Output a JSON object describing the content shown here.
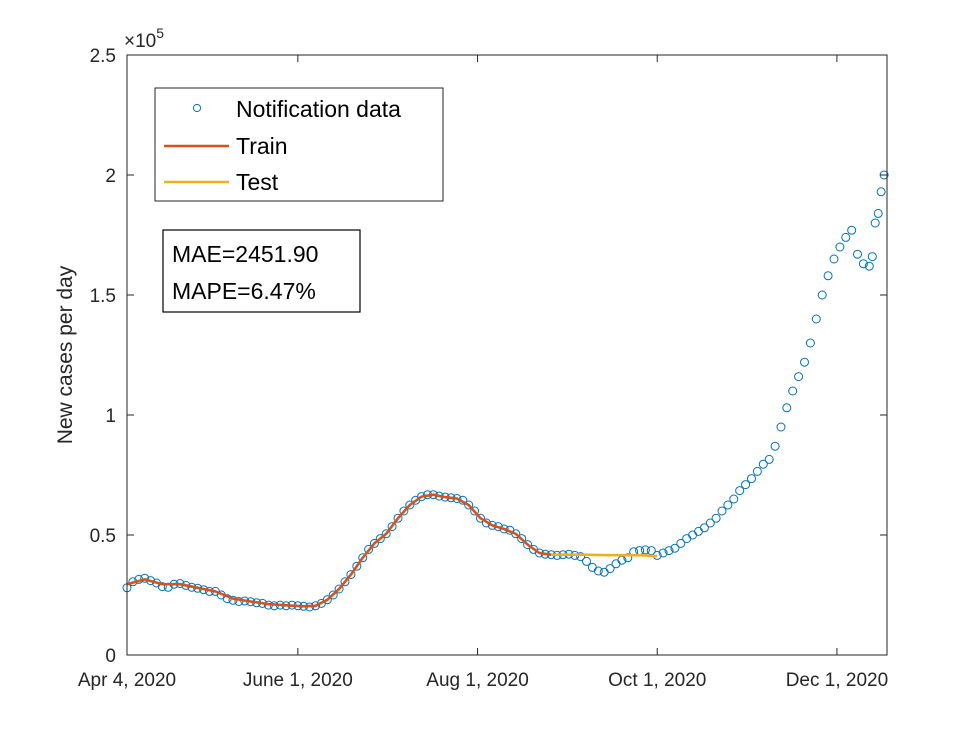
{
  "chart_data": {
    "type": "line",
    "title": "",
    "xlabel": "",
    "ylabel": "New cases per day",
    "exponent_label": "×10",
    "exponent_power": "5",
    "x_range": [
      "2020-04-04",
      "2020-12-18"
    ],
    "ylim": [
      0,
      250000
    ],
    "x_ticks": [
      {
        "date": "2020-04-04",
        "label": "Apr 4, 2020"
      },
      {
        "date": "2020-06-01",
        "label": "June 1, 2020"
      },
      {
        "date": "2020-08-01",
        "label": "Aug 1, 2020"
      },
      {
        "date": "2020-10-01",
        "label": "Oct 1, 2020"
      },
      {
        "date": "2020-12-01",
        "label": "Dec 1, 2020"
      }
    ],
    "y_ticks": [
      {
        "value": 0,
        "label": "0"
      },
      {
        "value": 50000,
        "label": "0.5"
      },
      {
        "value": 100000,
        "label": "1"
      },
      {
        "value": 150000,
        "label": "1.5"
      },
      {
        "value": 200000,
        "label": "2"
      },
      {
        "value": 250000,
        "label": "2.5"
      }
    ],
    "grid": false,
    "legend_position": "top-left",
    "annotations": [
      "MAE=2451.90",
      "MAPE=6.47%"
    ],
    "series": [
      {
        "name": "Notification data",
        "style": "circle-markers",
        "color": "#0072BD",
        "points": [
          [
            "2020-04-04",
            28000
          ],
          [
            "2020-04-06",
            30500
          ],
          [
            "2020-04-08",
            31500
          ],
          [
            "2020-04-10",
            32000
          ],
          [
            "2020-04-12",
            31000
          ],
          [
            "2020-04-14",
            30000
          ],
          [
            "2020-04-16",
            28500
          ],
          [
            "2020-04-18",
            28200
          ],
          [
            "2020-04-20",
            29500
          ],
          [
            "2020-04-22",
            29800
          ],
          [
            "2020-04-24",
            29000
          ],
          [
            "2020-04-26",
            28200
          ],
          [
            "2020-04-28",
            27800
          ],
          [
            "2020-04-30",
            27200
          ],
          [
            "2020-05-02",
            26500
          ],
          [
            "2020-05-04",
            26500
          ],
          [
            "2020-05-06",
            25000
          ],
          [
            "2020-05-08",
            23500
          ],
          [
            "2020-05-10",
            22800
          ],
          [
            "2020-05-12",
            22300
          ],
          [
            "2020-05-14",
            22500
          ],
          [
            "2020-05-16",
            22200
          ],
          [
            "2020-05-18",
            21800
          ],
          [
            "2020-05-20",
            21500
          ],
          [
            "2020-05-22",
            20800
          ],
          [
            "2020-05-24",
            20500
          ],
          [
            "2020-05-26",
            20800
          ],
          [
            "2020-05-28",
            20500
          ],
          [
            "2020-05-30",
            20800
          ],
          [
            "2020-06-01",
            20500
          ],
          [
            "2020-06-03",
            20300
          ],
          [
            "2020-06-05",
            20000
          ],
          [
            "2020-06-07",
            20500
          ],
          [
            "2020-06-09",
            21500
          ],
          [
            "2020-06-11",
            23000
          ],
          [
            "2020-06-13",
            25000
          ],
          [
            "2020-06-15",
            27500
          ],
          [
            "2020-06-17",
            30500
          ],
          [
            "2020-06-19",
            33500
          ],
          [
            "2020-06-21",
            37000
          ],
          [
            "2020-06-23",
            40500
          ],
          [
            "2020-06-25",
            44000
          ],
          [
            "2020-06-27",
            46500
          ],
          [
            "2020-06-29",
            48500
          ],
          [
            "2020-07-01",
            50500
          ],
          [
            "2020-07-03",
            53500
          ],
          [
            "2020-07-05",
            57000
          ],
          [
            "2020-07-07",
            60000
          ],
          [
            "2020-07-09",
            62500
          ],
          [
            "2020-07-11",
            64500
          ],
          [
            "2020-07-13",
            66000
          ],
          [
            "2020-07-15",
            66800
          ],
          [
            "2020-07-17",
            66800
          ],
          [
            "2020-07-19",
            66200
          ],
          [
            "2020-07-21",
            65800
          ],
          [
            "2020-07-23",
            65500
          ],
          [
            "2020-07-25",
            65200
          ],
          [
            "2020-07-27",
            64500
          ],
          [
            "2020-07-29",
            62500
          ],
          [
            "2020-07-31",
            60000
          ],
          [
            "2020-08-02",
            57000
          ],
          [
            "2020-08-04",
            55000
          ],
          [
            "2020-08-06",
            54000
          ],
          [
            "2020-08-08",
            53500
          ],
          [
            "2020-08-10",
            52500
          ],
          [
            "2020-08-12",
            52000
          ],
          [
            "2020-08-14",
            50500
          ],
          [
            "2020-08-16",
            48500
          ],
          [
            "2020-08-18",
            46000
          ],
          [
            "2020-08-20",
            44000
          ],
          [
            "2020-08-22",
            42500
          ],
          [
            "2020-08-24",
            42000
          ],
          [
            "2020-08-26",
            41800
          ],
          [
            "2020-08-28",
            41500
          ],
          [
            "2020-08-30",
            41800
          ],
          [
            "2020-09-01",
            42000
          ],
          [
            "2020-09-03",
            41500
          ],
          [
            "2020-09-05",
            41000
          ],
          [
            "2020-09-07",
            39000
          ],
          [
            "2020-09-09",
            36500
          ],
          [
            "2020-09-11",
            35000
          ],
          [
            "2020-09-13",
            34500
          ],
          [
            "2020-09-15",
            36000
          ],
          [
            "2020-09-17",
            38000
          ],
          [
            "2020-09-19",
            39500
          ],
          [
            "2020-09-21",
            40500
          ],
          [
            "2020-09-23",
            43000
          ],
          [
            "2020-09-25",
            43500
          ],
          [
            "2020-09-27",
            43800
          ],
          [
            "2020-09-29",
            43500
          ],
          [
            "2020-10-01",
            41500
          ],
          [
            "2020-10-03",
            42500
          ],
          [
            "2020-10-05",
            43500
          ],
          [
            "2020-10-07",
            44500
          ],
          [
            "2020-10-09",
            46500
          ],
          [
            "2020-10-11",
            48500
          ],
          [
            "2020-10-13",
            50000
          ],
          [
            "2020-10-15",
            51500
          ],
          [
            "2020-10-17",
            53000
          ],
          [
            "2020-10-19",
            55000
          ],
          [
            "2020-10-21",
            57000
          ],
          [
            "2020-10-23",
            60000
          ],
          [
            "2020-10-25",
            62500
          ],
          [
            "2020-10-27",
            65000
          ],
          [
            "2020-10-29",
            68500
          ],
          [
            "2020-10-31",
            71000
          ],
          [
            "2020-11-02",
            73500
          ],
          [
            "2020-11-04",
            76500
          ],
          [
            "2020-11-06",
            79500
          ],
          [
            "2020-11-08",
            81500
          ],
          [
            "2020-11-10",
            87000
          ],
          [
            "2020-11-12",
            95000
          ],
          [
            "2020-11-14",
            103000
          ],
          [
            "2020-11-16",
            110000
          ],
          [
            "2020-11-18",
            116000
          ],
          [
            "2020-11-20",
            122000
          ],
          [
            "2020-11-22",
            130000
          ],
          [
            "2020-11-24",
            140000
          ],
          [
            "2020-11-26",
            150000
          ],
          [
            "2020-11-28",
            158000
          ],
          [
            "2020-11-30",
            165000
          ],
          [
            "2020-12-02",
            170000
          ],
          [
            "2020-12-04",
            174000
          ],
          [
            "2020-12-06",
            177000
          ],
          [
            "2020-12-08",
            167000
          ],
          [
            "2020-12-10",
            163000
          ],
          [
            "2020-12-12",
            162000
          ],
          [
            "2020-12-13",
            166000
          ],
          [
            "2020-12-14",
            180000
          ],
          [
            "2020-12-15",
            184000
          ],
          [
            "2020-12-16",
            193000
          ],
          [
            "2020-12-17",
            200000
          ]
        ]
      },
      {
        "name": "Train",
        "style": "line",
        "color": "#D95319",
        "points": [
          [
            "2020-04-04",
            29500
          ],
          [
            "2020-04-10",
            31500
          ],
          [
            "2020-04-16",
            29500
          ],
          [
            "2020-04-22",
            29500
          ],
          [
            "2020-04-28",
            28000
          ],
          [
            "2020-05-04",
            26500
          ],
          [
            "2020-05-10",
            23500
          ],
          [
            "2020-05-16",
            22300
          ],
          [
            "2020-05-22",
            21200
          ],
          [
            "2020-05-28",
            20700
          ],
          [
            "2020-06-03",
            20300
          ],
          [
            "2020-06-07",
            20500
          ],
          [
            "2020-06-11",
            23000
          ],
          [
            "2020-06-15",
            27500
          ],
          [
            "2020-06-19",
            33500
          ],
          [
            "2020-06-23",
            40500
          ],
          [
            "2020-06-27",
            46500
          ],
          [
            "2020-07-01",
            50500
          ],
          [
            "2020-07-05",
            57000
          ],
          [
            "2020-07-09",
            62500
          ],
          [
            "2020-07-13",
            66000
          ],
          [
            "2020-07-17",
            66800
          ],
          [
            "2020-07-21",
            65800
          ],
          [
            "2020-07-25",
            65200
          ],
          [
            "2020-07-29",
            62500
          ],
          [
            "2020-08-02",
            57000
          ],
          [
            "2020-08-06",
            54000
          ],
          [
            "2020-08-10",
            52500
          ],
          [
            "2020-08-14",
            50500
          ],
          [
            "2020-08-18",
            46000
          ],
          [
            "2020-08-22",
            42500
          ],
          [
            "2020-08-26",
            41800
          ]
        ]
      },
      {
        "name": "Test",
        "style": "line",
        "color": "#EDB120",
        "points": [
          [
            "2020-08-26",
            41800
          ],
          [
            "2020-09-05",
            41800
          ],
          [
            "2020-09-15",
            41600
          ],
          [
            "2020-09-25",
            41600
          ],
          [
            "2020-10-01",
            41200
          ]
        ]
      }
    ]
  }
}
